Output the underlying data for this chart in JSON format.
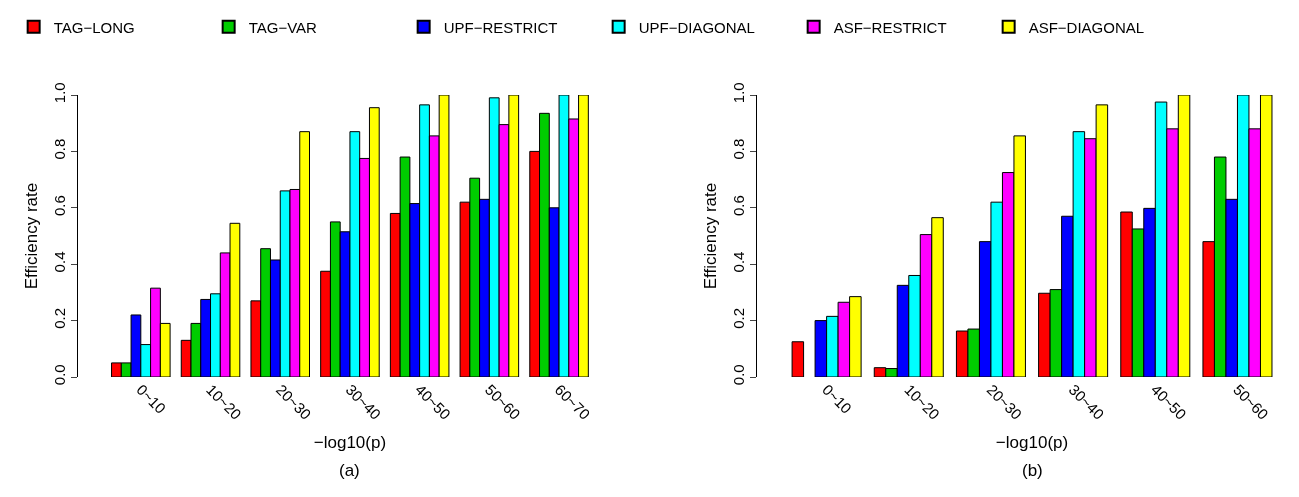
{
  "chart_data": [
    {
      "type": "bar",
      "xlabel": "−log10(p)",
      "ylabel": "Efficiency rate",
      "annotations": [
        "(a)"
      ],
      "legend": "top",
      "categories": [
        "0~10",
        "10~20",
        "20~30",
        "30~40",
        "40~50",
        "50~60",
        "60~70"
      ],
      "ylim": [
        0,
        1.0
      ],
      "yticks": [
        {
          "value": 0,
          "label": "0.0"
        },
        {
          "value": 0.2,
          "label": "0.2"
        },
        {
          "value": 0.4,
          "label": "0.4"
        },
        {
          "value": 0.6,
          "label": "0.6"
        },
        {
          "value": 0.8,
          "label": "0.8"
        },
        {
          "value": 1.0,
          "label": "1.0"
        }
      ],
      "series": [
        {
          "name": "TAG−LONG",
          "color": "#ff0000",
          "values": [
            0.05,
            0.13,
            0.27,
            0.375,
            0.58,
            0.62,
            0.8
          ]
        },
        {
          "name": "TAG−VAR",
          "color": "#00cd00",
          "values": [
            0.05,
            0.19,
            0.455,
            0.55,
            0.78,
            0.705,
            0.935
          ]
        },
        {
          "name": "UPF−RESTRICT",
          "color": "#0000ff",
          "values": [
            0.22,
            0.275,
            0.415,
            0.515,
            0.615,
            0.63,
            0.6
          ]
        },
        {
          "name": "UPF−DIAGONAL",
          "color": "#00ffff",
          "values": [
            0.115,
            0.295,
            0.66,
            0.87,
            0.965,
            0.99,
            1.0
          ]
        },
        {
          "name": "ASF−RESTRICT",
          "color": "#ff00ff",
          "values": [
            0.315,
            0.44,
            0.665,
            0.775,
            0.855,
            0.895,
            0.915
          ]
        },
        {
          "name": "ASF−DIAGONAL",
          "color": "#ffff00",
          "values": [
            0.19,
            0.545,
            0.87,
            0.955,
            1.0,
            1.0,
            1.0
          ]
        }
      ]
    },
    {
      "type": "bar",
      "xlabel": "−log10(p)",
      "ylabel": "Efficiency rate",
      "annotations": [
        "(b)"
      ],
      "categories": [
        "0~10",
        "10~20",
        "20~30",
        "30~40",
        "40~50",
        "50~60"
      ],
      "ylim": [
        0,
        1.0
      ],
      "yticks": [
        {
          "value": 0,
          "label": "0.0"
        },
        {
          "value": 0.2,
          "label": "0.2"
        },
        {
          "value": 0.4,
          "label": "0.4"
        },
        {
          "value": 0.6,
          "label": "0.6"
        },
        {
          "value": 0.8,
          "label": "0.8"
        },
        {
          "value": 1.0,
          "label": "1.0"
        }
      ],
      "series": [
        {
          "color": "#ff0000",
          "values": [
            0.125,
            0.033,
            0.163,
            0.297,
            0.585,
            0.48
          ]
        },
        {
          "color": "#00cd00",
          "values": [
            0.0,
            0.03,
            0.17,
            0.31,
            0.525,
            0.78
          ]
        },
        {
          "color": "#0000ff",
          "values": [
            0.2,
            0.325,
            0.48,
            0.57,
            0.598,
            0.63
          ]
        },
        {
          "color": "#00ffff",
          "values": [
            0.215,
            0.36,
            0.62,
            0.87,
            0.975,
            1.0
          ]
        },
        {
          "color": "#ff00ff",
          "values": [
            0.265,
            0.505,
            0.725,
            0.845,
            0.88,
            0.88
          ]
        },
        {
          "color": "#ffff00",
          "values": [
            0.285,
            0.565,
            0.855,
            0.965,
            1.0,
            1.0
          ]
        }
      ]
    }
  ]
}
